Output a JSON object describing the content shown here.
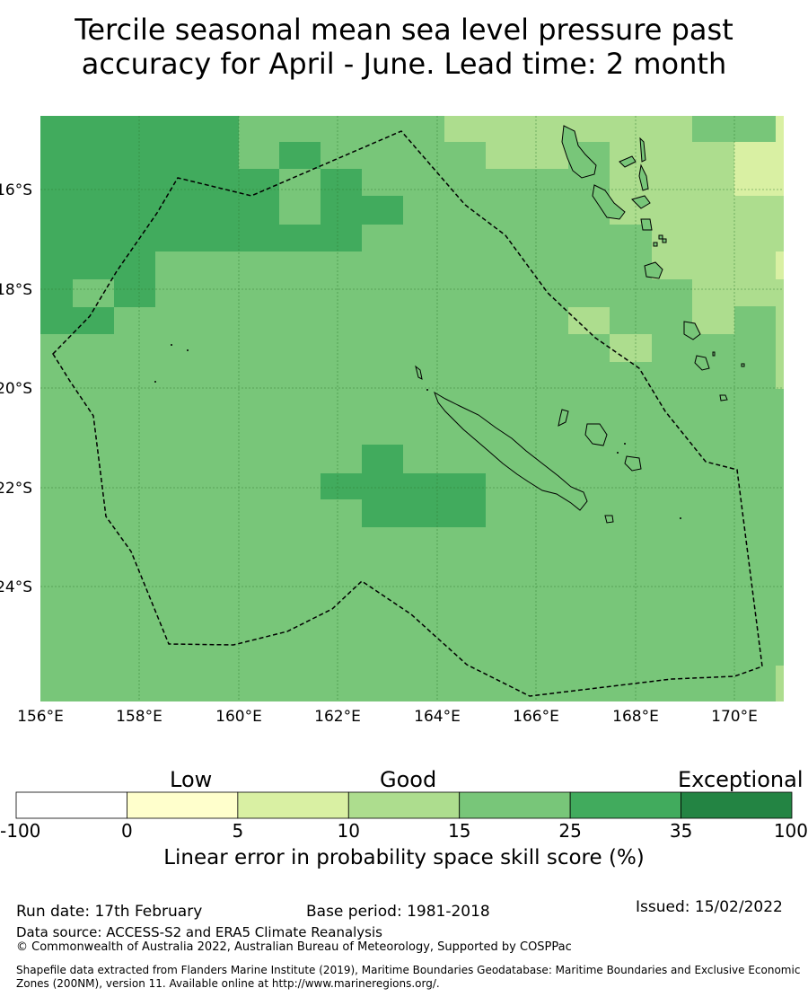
{
  "title_line1": "Tercile seasonal mean sea level pressure past",
  "title_line2": "accuracy for April - June. Lead time: 2 month",
  "map": {
    "lon_range": [
      156,
      171
    ],
    "lat_range": [
      -26.5,
      -14.7
    ],
    "lon_ticks": [
      "156°E",
      "158°E",
      "160°E",
      "162°E",
      "164°E",
      "166°E",
      "168°E",
      "170°E"
    ],
    "lat_ticks": [
      "16°S",
      "18°S",
      "20°S",
      "22°S",
      "24°S"
    ],
    "colors": {
      "green_35": "#41ab5d",
      "green_25": "#78c679",
      "green_15": "#addd8e",
      "green_10": "#d9f0a3",
      "coast": "#000000",
      "eez": "#000000"
    }
  },
  "colorbar": {
    "categories": [
      "Low",
      "Good",
      "Exceptional"
    ],
    "ticks": [
      "-100",
      "0",
      "5",
      "10",
      "15",
      "25",
      "35",
      "100"
    ],
    "colors": [
      "#ffffff",
      "#ffffcc",
      "#d9f0a3",
      "#addd8e",
      "#78c679",
      "#41ab5d",
      "#238443"
    ],
    "label": "Linear error in probability space skill score (%)"
  },
  "footer": {
    "run_date": "Run date: 17th February",
    "base_period": "Base period: 1981-2018",
    "issued": "Issued: 15/02/2022",
    "data_source": "Data source: ACCESS-S2 and ERA5 Climate Reanalysis",
    "copyright": "© Commonwealth of Australia 2022, Australian Bureau of Meteorology, Supported by COSPPac",
    "shapefile": "Shapefile data extracted from Flanders Marine Institute (2019), Maritime Boundaries Geodatabase: Maritime Boundaries and Exclusive Economic Zones (200NM), version 11. Available online at http://www.marineregions.org/."
  }
}
